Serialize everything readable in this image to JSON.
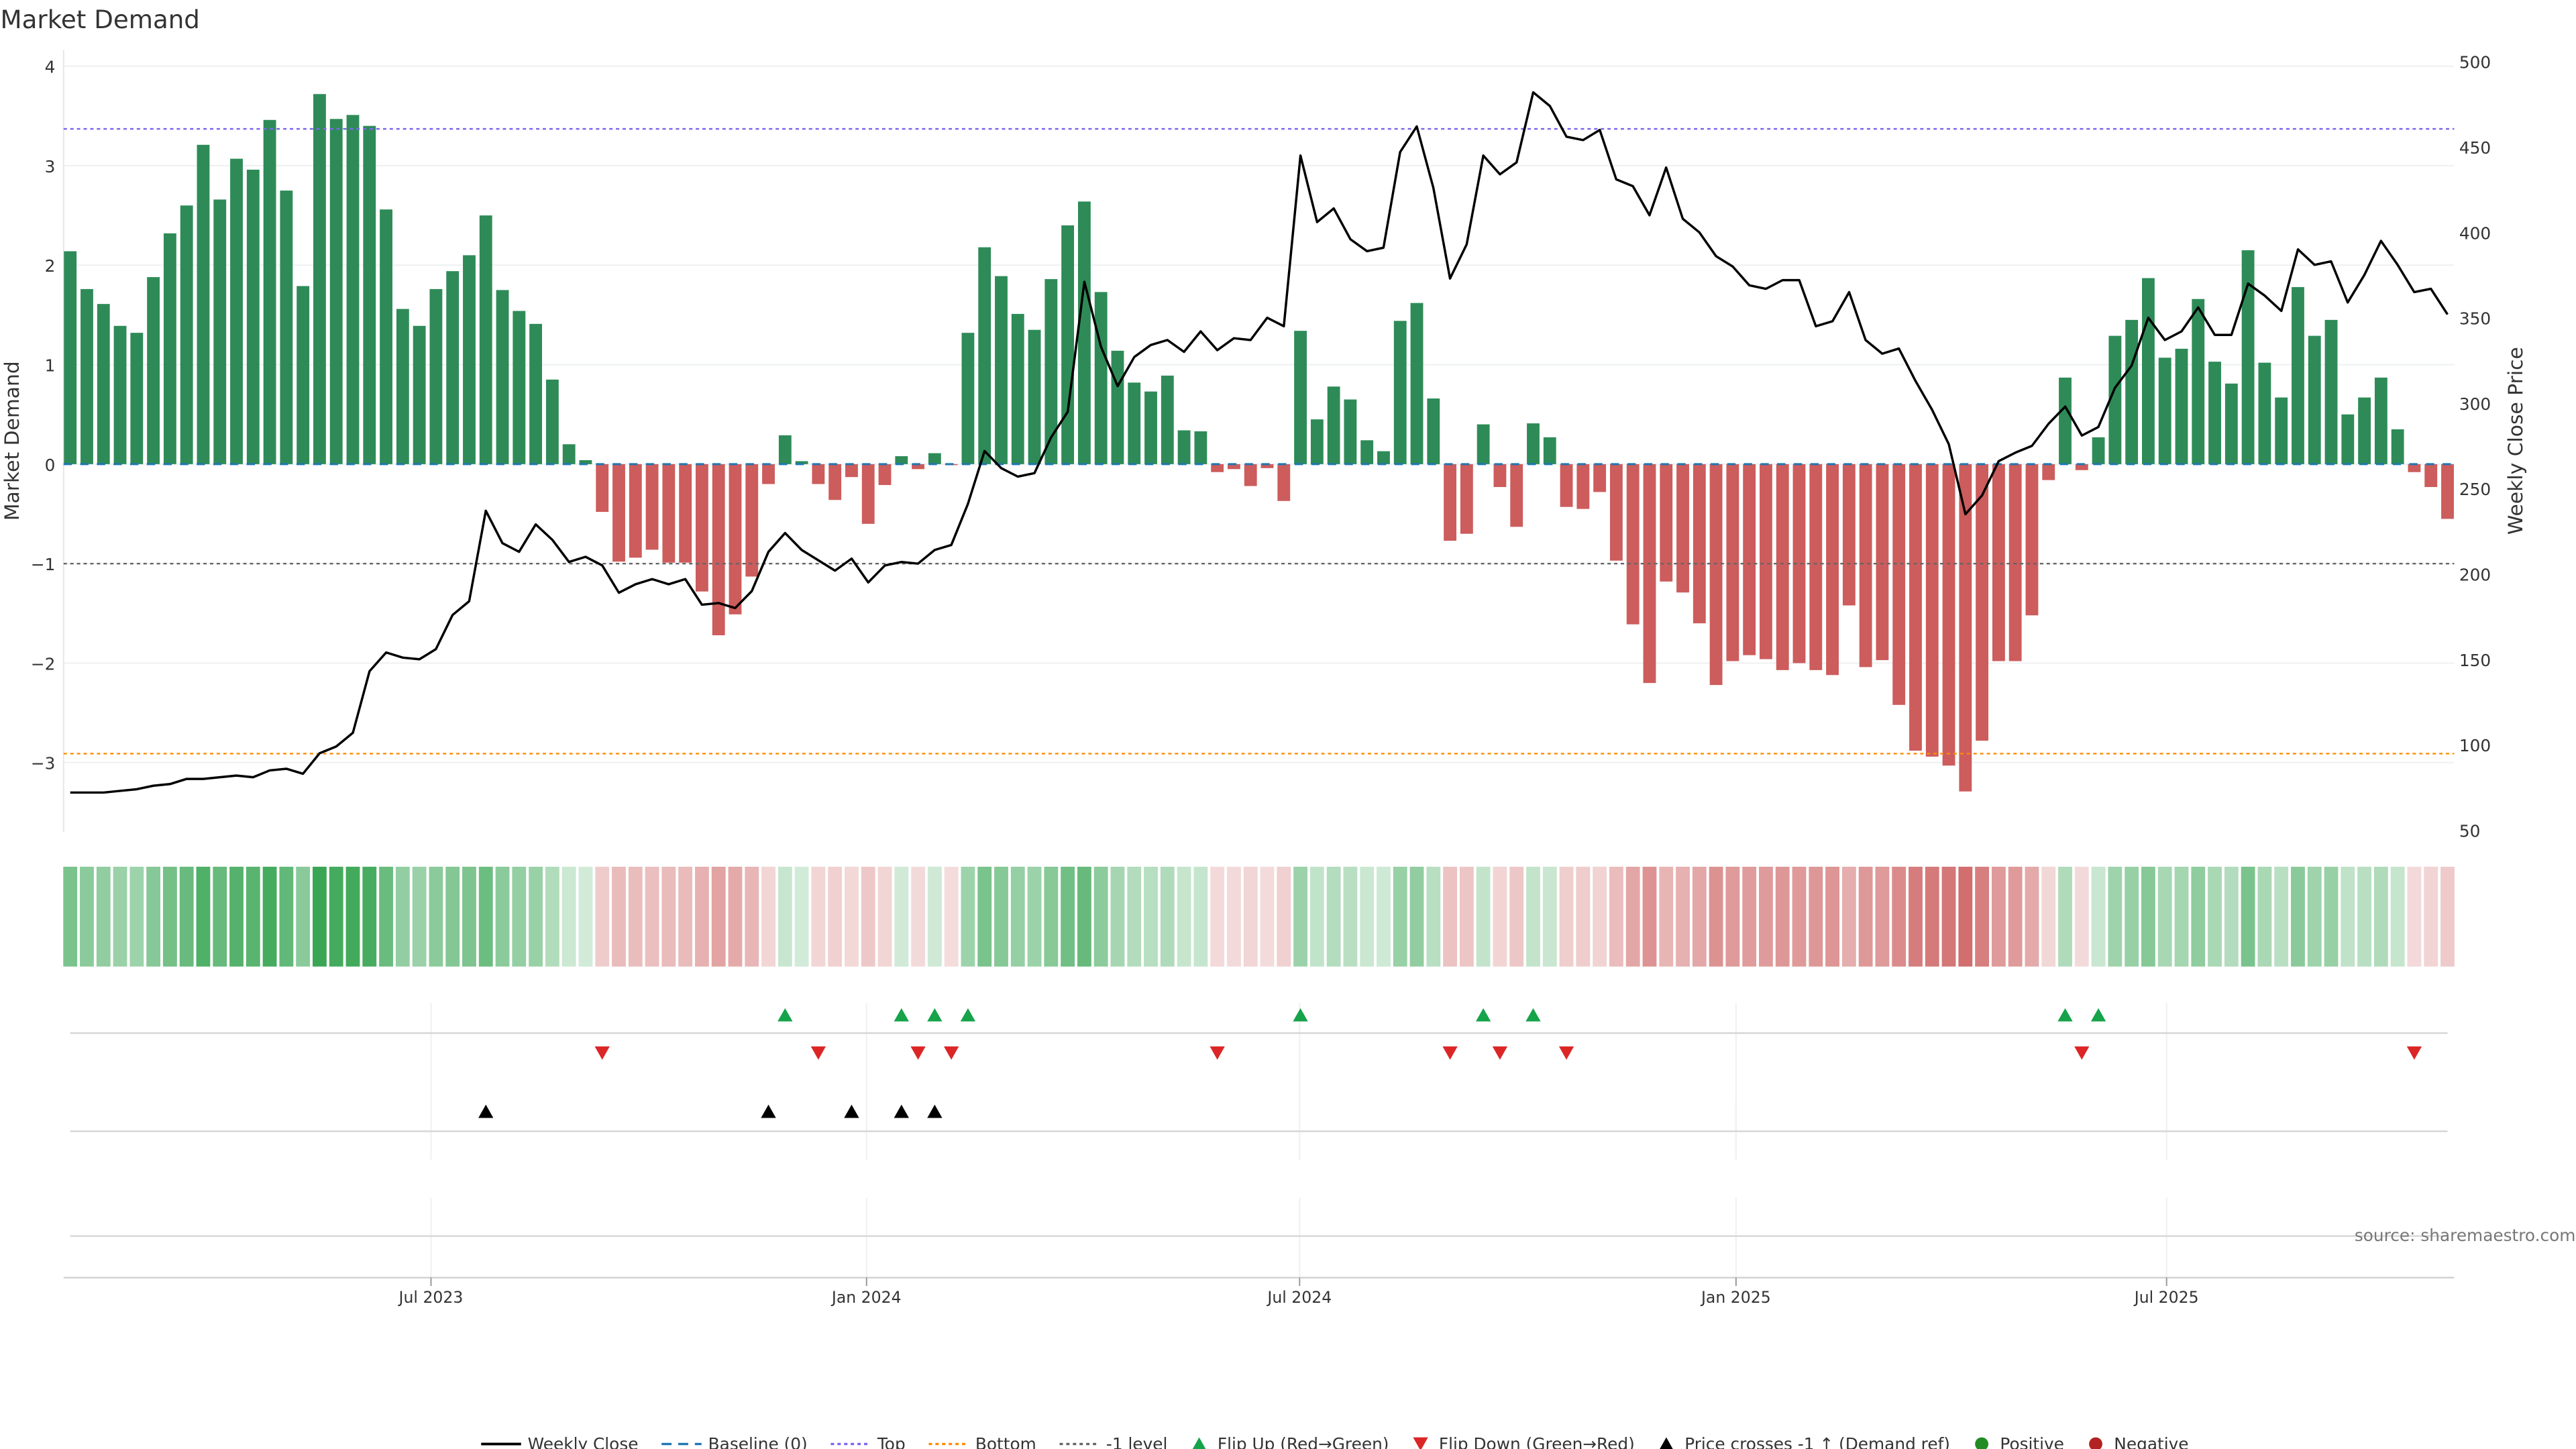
{
  "chart_data": {
    "type": "bar",
    "title": "Market Demand",
    "ylabel": "Market Demand",
    "y2label": "Weekly Close Price",
    "ylim": [
      -3.7,
      4.1
    ],
    "y2lim": [
      45,
      505
    ],
    "yticks": [
      -3,
      -2,
      -1,
      0,
      1,
      2,
      3,
      4
    ],
    "y2ticks": [
      50,
      100,
      150,
      200,
      250,
      300,
      350,
      400,
      450,
      500
    ],
    "grid": true,
    "levels": {
      "top": 3.37,
      "bottom": -2.91,
      "minus_one": -1,
      "baseline": 0
    },
    "xticks": [
      {
        "label": "Jul 2023",
        "week": 22.7
      },
      {
        "label": "Jan 2024",
        "week": 48.9
      },
      {
        "label": "Jul 2024",
        "week": 74.95
      },
      {
        "label": "Jan 2025",
        "week": 101.2
      },
      {
        "label": "Jul 2025",
        "week": 127.1
      }
    ],
    "demand": [
      2.14,
      1.76,
      1.61,
      1.39,
      1.32,
      1.88,
      2.32,
      2.6,
      3.21,
      2.66,
      3.07,
      2.96,
      3.46,
      2.75,
      1.79,
      3.72,
      3.47,
      3.51,
      3.4,
      2.56,
      1.56,
      1.39,
      1.76,
      1.94,
      2.1,
      2.5,
      1.75,
      1.54,
      1.41,
      0.85,
      0.2,
      0.04,
      -0.48,
      -0.98,
      -0.94,
      -0.86,
      -0.99,
      -0.99,
      -1.28,
      -1.72,
      -1.51,
      -1.13,
      -0.2,
      0.29,
      0.03,
      -0.2,
      -0.36,
      -0.13,
      -0.6,
      -0.21,
      0.08,
      -0.05,
      0.11,
      -0.01,
      1.32,
      2.18,
      1.89,
      1.51,
      1.35,
      1.86,
      2.4,
      2.64,
      1.73,
      1.14,
      0.82,
      0.73,
      0.89,
      0.34,
      0.33,
      -0.08,
      -0.05,
      -0.22,
      -0.04,
      -0.37,
      1.34,
      0.45,
      0.78,
      0.65,
      0.24,
      0.13,
      1.44,
      1.62,
      0.66,
      -0.77,
      -0.7,
      0.4,
      -0.23,
      -0.63,
      0.41,
      0.27,
      -0.43,
      -0.45,
      -0.28,
      -0.97,
      -1.61,
      -2.2,
      -1.18,
      -1.29,
      -1.6,
      -2.22,
      -1.98,
      -1.92,
      -1.96,
      -2.07,
      -2.0,
      -2.07,
      -2.12,
      -1.42,
      -2.04,
      -1.97,
      -2.42,
      -2.88,
      -2.94,
      -3.03,
      -3.29,
      -2.78,
      -1.98,
      -1.98,
      -1.52,
      -0.16,
      0.87,
      -0.06,
      0.27,
      1.29,
      1.45,
      1.87,
      1.07,
      1.16,
      1.66,
      1.03,
      0.81,
      2.15,
      1.02,
      0.67,
      1.78,
      1.29,
      1.45,
      0.5,
      0.67,
      0.87,
      0.35,
      -0.08,
      -0.23,
      -0.55
    ],
    "weekly_close": [
      72,
      72,
      72,
      73,
      74,
      76,
      77,
      80,
      80,
      81,
      82,
      81,
      85,
      86,
      83,
      95,
      99,
      107,
      143,
      154,
      151,
      150,
      156,
      176,
      184,
      237,
      218,
      213,
      229,
      220,
      207,
      210,
      205,
      189,
      194,
      197,
      194,
      197,
      182,
      183,
      180,
      190,
      213,
      224,
      214,
      208,
      202,
      209,
      195,
      205,
      207,
      206,
      214,
      217,
      241,
      272,
      262,
      257,
      259,
      280,
      295,
      371,
      333,
      310,
      327,
      334,
      337,
      330,
      342,
      331,
      338,
      337,
      350,
      345,
      445,
      406,
      414,
      396,
      389,
      391,
      447,
      462,
      426,
      373,
      393,
      445,
      434,
      441,
      482,
      474,
      456,
      454,
      460,
      431,
      427,
      410,
      438,
      408,
      400,
      386,
      380,
      369,
      367,
      372,
      372,
      345,
      348,
      365,
      337,
      329,
      332,
      313,
      296,
      276,
      235,
      246,
      266,
      271,
      275,
      288,
      298,
      281,
      286,
      309,
      322,
      350,
      337,
      342,
      356,
      340,
      340,
      370,
      363,
      354,
      390,
      381,
      383,
      359,
      375,
      395,
      381,
      365,
      367,
      352
    ],
    "flip_up_weeks": [
      44,
      51,
      53,
      55,
      75,
      86,
      89,
      121,
      123
    ],
    "flip_down_weeks": [
      33,
      46,
      52,
      54,
      70,
      84,
      87,
      91,
      122,
      142
    ],
    "price_cross_weeks": [
      26,
      43,
      48,
      51,
      53
    ],
    "legend": [
      {
        "label": "Weekly Close",
        "kind": "line",
        "color": "#000000"
      },
      {
        "label": "Baseline (0)",
        "kind": "dash",
        "color": "#1f77b4"
      },
      {
        "label": "Top",
        "kind": "dot",
        "color": "#7b68ee"
      },
      {
        "label": "Bottom",
        "kind": "dot",
        "color": "#ff8c00"
      },
      {
        "label": "-1 level",
        "kind": "dot",
        "color": "#666666"
      },
      {
        "label": "Flip Up (Red→Green)",
        "kind": "tri-up",
        "color": "#16a34a"
      },
      {
        "label": "Flip Down (Green→Red)",
        "kind": "tri-down",
        "color": "#dc2626"
      },
      {
        "label": "Price crosses -1 ↑ (Demand ref)",
        "kind": "tri-up",
        "color": "#000000"
      },
      {
        "label": "Positive",
        "kind": "circle",
        "color": "#228b22"
      },
      {
        "label": "Negative",
        "kind": "circle",
        "color": "#b22222"
      }
    ],
    "legend_position": "bottom",
    "colors": {
      "positive": "#2e8b57",
      "negative": "#cd5c5c",
      "heat_pos": "#3aa655",
      "heat_neg": "#cd6060"
    },
    "source": "source: sharemaestro.com"
  }
}
